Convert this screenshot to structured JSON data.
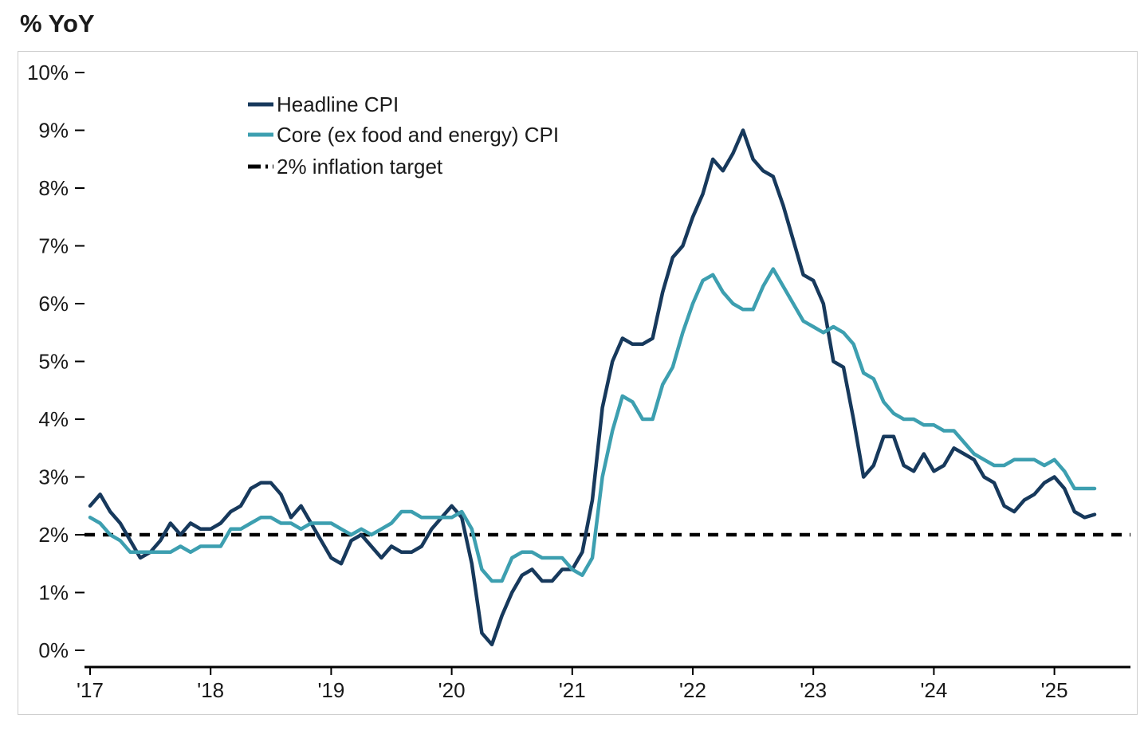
{
  "chart_data": {
    "type": "line",
    "title": "% YoY",
    "x_range": "Jan 2017 - May 2025, monthly",
    "ylim": [
      0,
      10
    ],
    "yticks": [
      "0%",
      "1%",
      "2%",
      "3%",
      "4%",
      "5%",
      "6%",
      "7%",
      "8%",
      "9%",
      "10%"
    ],
    "xticks": [
      "'17",
      "'18",
      "'19",
      "'20",
      "'21",
      "'22",
      "'23",
      "'24",
      "'25"
    ],
    "xtick_month_index": [
      0,
      12,
      24,
      36,
      48,
      60,
      72,
      84,
      96
    ],
    "grid": false,
    "legend_position": "top-left-inside",
    "axis_color": "#000000",
    "frame_color": "#cfcfcf",
    "series": [
      {
        "name": "Headline CPI",
        "color": "#17395c",
        "line_style": "solid",
        "values": [
          2.5,
          2.7,
          2.4,
          2.2,
          1.9,
          1.6,
          1.7,
          1.9,
          2.2,
          2.0,
          2.2,
          2.1,
          2.1,
          2.2,
          2.4,
          2.5,
          2.8,
          2.9,
          2.9,
          2.7,
          2.3,
          2.5,
          2.2,
          1.9,
          1.6,
          1.5,
          1.9,
          2.0,
          1.8,
          1.6,
          1.8,
          1.7,
          1.7,
          1.8,
          2.1,
          2.3,
          2.5,
          2.3,
          1.5,
          0.3,
          0.1,
          0.6,
          1.0,
          1.3,
          1.4,
          1.2,
          1.2,
          1.4,
          1.4,
          1.7,
          2.6,
          4.2,
          5.0,
          5.4,
          5.3,
          5.3,
          5.4,
          6.2,
          6.8,
          7.0,
          7.5,
          7.9,
          8.5,
          8.3,
          8.6,
          9.0,
          8.5,
          8.3,
          8.2,
          7.7,
          7.1,
          6.5,
          6.4,
          6.0,
          5.0,
          4.9,
          4.0,
          3.0,
          3.2,
          3.7,
          3.7,
          3.2,
          3.1,
          3.4,
          3.1,
          3.2,
          3.5,
          3.4,
          3.3,
          3.0,
          2.9,
          2.5,
          2.4,
          2.6,
          2.7,
          2.9,
          3.0,
          2.8,
          2.4,
          2.3,
          2.35
        ]
      },
      {
        "name": "Core (ex food and energy) CPI",
        "color": "#3d9fb0",
        "line_style": "solid",
        "values": [
          2.3,
          2.2,
          2.0,
          1.9,
          1.7,
          1.7,
          1.7,
          1.7,
          1.7,
          1.8,
          1.7,
          1.8,
          1.8,
          1.8,
          2.1,
          2.1,
          2.2,
          2.3,
          2.3,
          2.2,
          2.2,
          2.1,
          2.2,
          2.2,
          2.2,
          2.1,
          2.0,
          2.1,
          2.0,
          2.1,
          2.2,
          2.4,
          2.4,
          2.3,
          2.3,
          2.3,
          2.3,
          2.4,
          2.1,
          1.4,
          1.2,
          1.2,
          1.6,
          1.7,
          1.7,
          1.6,
          1.6,
          1.6,
          1.4,
          1.3,
          1.6,
          3.0,
          3.8,
          4.4,
          4.3,
          4.0,
          4.0,
          4.6,
          4.9,
          5.5,
          6.0,
          6.4,
          6.5,
          6.2,
          6.0,
          5.9,
          5.9,
          6.3,
          6.6,
          6.3,
          6.0,
          5.7,
          5.6,
          5.5,
          5.6,
          5.5,
          5.3,
          4.8,
          4.7,
          4.3,
          4.1,
          4.0,
          4.0,
          3.9,
          3.9,
          3.8,
          3.8,
          3.6,
          3.4,
          3.3,
          3.2,
          3.2,
          3.3,
          3.3,
          3.3,
          3.2,
          3.3,
          3.1,
          2.8,
          2.8,
          2.8
        ]
      },
      {
        "name": "2% inflation target",
        "color": "#000000",
        "line_style": "dashed",
        "value": 2
      }
    ]
  }
}
